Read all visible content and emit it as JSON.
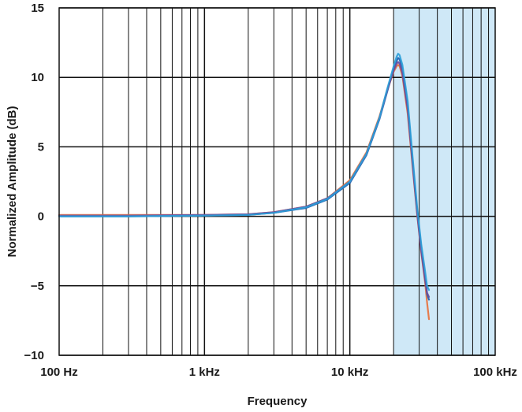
{
  "chart_data": {
    "type": "line",
    "title": "",
    "xlabel": "Frequency",
    "ylabel": "Normalized Amplitude (dB)",
    "x_scale": "log",
    "xlim": [
      100,
      100000
    ],
    "ylim": [
      -10,
      15
    ],
    "grid": true,
    "legend": "none",
    "x_ticks": [
      {
        "value": 100,
        "label": "100 Hz"
      },
      {
        "value": 1000,
        "label": "1 kHz"
      },
      {
        "value": 10000,
        "label": "10 kHz"
      },
      {
        "value": 100000,
        "label": "100 kHz"
      }
    ],
    "y_ticks": [
      {
        "value": 15,
        "label": "15"
      },
      {
        "value": 10,
        "label": "10"
      },
      {
        "value": 5,
        "label": "5"
      },
      {
        "value": 0,
        "label": "0"
      },
      {
        "value": -5,
        "label": "−5"
      },
      {
        "value": -10,
        "label": "−10"
      }
    ],
    "shaded_region": {
      "x_start": 20000,
      "x_end": 100000,
      "color": "#cfe8f7"
    },
    "series": [
      {
        "color": "#e8703a",
        "x": [
          100,
          300,
          1000,
          2000,
          3000,
          5000,
          7000,
          10000,
          13000,
          16000,
          18000,
          20000,
          21000,
          21500,
          22000,
          23000,
          25000,
          27000,
          29000,
          31000,
          33000,
          34000,
          35000
        ],
        "y": [
          0.1,
          0.1,
          0.1,
          0.15,
          0.3,
          0.7,
          1.3,
          2.6,
          4.6,
          7.2,
          9.0,
          10.4,
          10.8,
          10.9,
          10.8,
          10.1,
          7.4,
          3.6,
          0.2,
          -2.6,
          -4.8,
          -6.2,
          -7.4
        ]
      },
      {
        "color": "#1c5fb0",
        "x": [
          100,
          300,
          1000,
          2000,
          3000,
          5000,
          7000,
          10000,
          13000,
          16000,
          18000,
          20000,
          21000,
          21500,
          22000,
          23000,
          25000,
          27000,
          29000,
          31000,
          33000,
          34000,
          35000
        ],
        "y": [
          0.0,
          0.0,
          0.05,
          0.1,
          0.25,
          0.6,
          1.2,
          2.4,
          4.4,
          7.0,
          8.9,
          10.6,
          11.2,
          11.4,
          11.3,
          10.6,
          8.0,
          4.0,
          0.5,
          -2.3,
          -4.5,
          -5.6,
          -6.0
        ]
      },
      {
        "color": "#6a4a9c",
        "x": [
          100,
          300,
          1000,
          2000,
          3000,
          5000,
          7000,
          10000,
          13000,
          16000,
          18000,
          20000,
          21000,
          21500,
          22000,
          23000,
          25000,
          27000,
          29000,
          31000,
          33000,
          34000,
          35000
        ],
        "y": [
          0.05,
          0.05,
          0.1,
          0.15,
          0.3,
          0.7,
          1.3,
          2.5,
          4.5,
          7.1,
          9.0,
          10.5,
          11.0,
          11.1,
          11.0,
          10.3,
          7.7,
          3.8,
          0.3,
          -2.5,
          -4.6,
          -5.5,
          -5.8
        ]
      },
      {
        "color": "#2a9fd8",
        "x": [
          100,
          300,
          1000,
          2000,
          3000,
          5000,
          7000,
          10000,
          13000,
          16000,
          18000,
          20000,
          21000,
          21500,
          22000,
          23000,
          25000,
          27000,
          29000,
          31000,
          33000,
          34000,
          35000
        ],
        "y": [
          0.0,
          0.0,
          0.05,
          0.1,
          0.25,
          0.65,
          1.25,
          2.5,
          4.5,
          7.1,
          9.1,
          10.8,
          11.5,
          11.7,
          11.6,
          10.9,
          8.3,
          4.3,
          0.7,
          -2.0,
          -4.0,
          -5.0,
          -5.3
        ]
      }
    ]
  }
}
